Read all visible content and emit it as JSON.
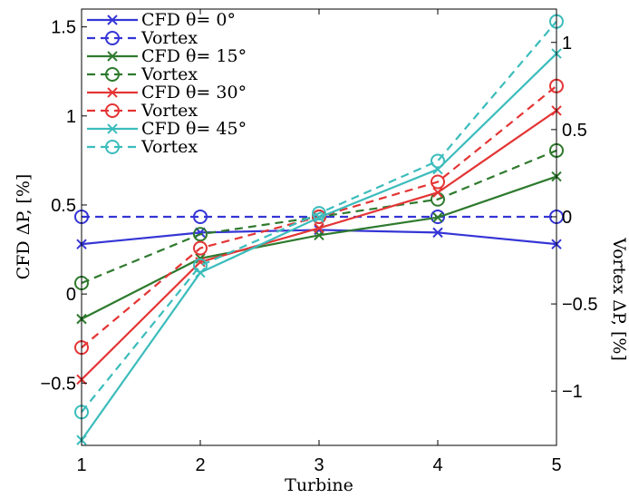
{
  "chart_data": {
    "type": "line",
    "x": [
      1,
      2,
      3,
      4,
      5
    ],
    "xlabel": "Turbine",
    "ylabel_left": "CFD ΔP, [%]",
    "ylabel_right": "Vortex ΔP, [%]",
    "xlim": [
      1,
      5
    ],
    "ylim_left": [
      -0.85,
      1.6
    ],
    "ylim_right": [
      -1.3112,
      1.1912
    ],
    "xticks": [
      "1",
      "2",
      "3",
      "4",
      "5"
    ],
    "yticks_left": [
      "−0.5",
      "0",
      "0.5",
      "1",
      "1.5"
    ],
    "yticks_right": [
      "−1",
      "−0.5",
      "0",
      "0.5",
      "1"
    ],
    "grid": false,
    "legend_position": "top-left",
    "series": [
      {
        "name": "CFD θ= 0°",
        "axis": "left",
        "color": "#3535d6",
        "dash": false,
        "marker": "x",
        "values": [
          0.28,
          0.345,
          0.36,
          0.345,
          0.28
        ]
      },
      {
        "name": "Vortex",
        "axis": "right",
        "color": "#3535d6",
        "dash": true,
        "marker": "o",
        "values": [
          0,
          0,
          0,
          0,
          0
        ]
      },
      {
        "name": "CFD θ= 15°",
        "axis": "left",
        "color": "#2e7a2e",
        "dash": false,
        "marker": "x",
        "values": [
          -0.14,
          0.2,
          0.33,
          0.43,
          0.66
        ]
      },
      {
        "name": "Vortex",
        "axis": "right",
        "color": "#2e7a2e",
        "dash": true,
        "marker": "o",
        "values": [
          -0.38,
          -0.1,
          0,
          0.1,
          0.38
        ]
      },
      {
        "name": "CFD θ= 30°",
        "axis": "left",
        "color": "#e43535",
        "dash": false,
        "marker": "x",
        "values": [
          -0.48,
          0.18,
          0.37,
          0.57,
          1.03
        ]
      },
      {
        "name": "Vortex",
        "axis": "right",
        "color": "#e43535",
        "dash": true,
        "marker": "o",
        "values": [
          -0.75,
          -0.18,
          0,
          0.2,
          0.75
        ]
      },
      {
        "name": "CFD θ= 45°",
        "axis": "left",
        "color": "#3cbcbc",
        "dash": false,
        "marker": "x",
        "values": [
          -0.82,
          0.12,
          0.43,
          0.7,
          1.35
        ]
      },
      {
        "name": "Vortex",
        "axis": "right",
        "color": "#3cbcbc",
        "dash": true,
        "marker": "o",
        "values": [
          -1.12,
          -0.28,
          0.02,
          0.32,
          1.12
        ]
      }
    ]
  }
}
